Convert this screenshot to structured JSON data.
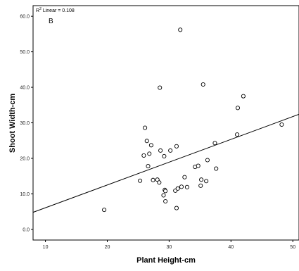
{
  "chart_data": {
    "type": "scatter",
    "title": "",
    "xlabel": "Plant Height-cm",
    "ylabel": "Shoot Width-cm",
    "xlim": [
      8,
      51
    ],
    "ylim": [
      -3,
      63
    ],
    "x_ticks": [
      10,
      20,
      30,
      40,
      50
    ],
    "y_ticks": [
      0.0,
      10.0,
      20.0,
      30.0,
      40.0,
      50.0,
      60.0
    ],
    "annotations": {
      "r2_prefix": "R",
      "r2_sup": "2",
      "r2_text": "Linear = 0.108",
      "panel_label": "B"
    },
    "points": [
      {
        "x": 19.5,
        "y": 5.5
      },
      {
        "x": 25.3,
        "y": 13.7
      },
      {
        "x": 25.9,
        "y": 20.8
      },
      {
        "x": 26.1,
        "y": 28.6
      },
      {
        "x": 26.4,
        "y": 24.9
      },
      {
        "x": 26.6,
        "y": 17.8
      },
      {
        "x": 26.8,
        "y": 21.3
      },
      {
        "x": 27.1,
        "y": 23.7
      },
      {
        "x": 27.4,
        "y": 13.9
      },
      {
        "x": 28.1,
        "y": 14.0
      },
      {
        "x": 28.4,
        "y": 13.2
      },
      {
        "x": 28.5,
        "y": 39.9
      },
      {
        "x": 28.6,
        "y": 22.2
      },
      {
        "x": 29.1,
        "y": 9.6
      },
      {
        "x": 29.2,
        "y": 20.6
      },
      {
        "x": 29.3,
        "y": 11.1
      },
      {
        "x": 29.4,
        "y": 7.9
      },
      {
        "x": 29.4,
        "y": 10.8
      },
      {
        "x": 30.2,
        "y": 22.2
      },
      {
        "x": 31.0,
        "y": 10.9
      },
      {
        "x": 31.2,
        "y": 23.4
      },
      {
        "x": 31.2,
        "y": 6.0
      },
      {
        "x": 31.4,
        "y": 11.5
      },
      {
        "x": 31.8,
        "y": 56.2
      },
      {
        "x": 32.0,
        "y": 12.0
      },
      {
        "x": 32.5,
        "y": 14.7
      },
      {
        "x": 32.9,
        "y": 11.9
      },
      {
        "x": 34.2,
        "y": 17.6
      },
      {
        "x": 34.7,
        "y": 17.9
      },
      {
        "x": 35.1,
        "y": 12.3
      },
      {
        "x": 35.2,
        "y": 14.0
      },
      {
        "x": 35.5,
        "y": 40.8
      },
      {
        "x": 36.0,
        "y": 13.6
      },
      {
        "x": 36.2,
        "y": 19.5
      },
      {
        "x": 37.4,
        "y": 24.3
      },
      {
        "x": 37.6,
        "y": 17.1
      },
      {
        "x": 41.0,
        "y": 26.7
      },
      {
        "x": 41.1,
        "y": 34.2
      },
      {
        "x": 42.0,
        "y": 37.5
      },
      {
        "x": 48.2,
        "y": 29.5
      }
    ],
    "fit_line": {
      "x": [
        8,
        51
      ],
      "y": [
        4.8,
        32.4
      ]
    },
    "grid": false,
    "legend": "none"
  }
}
